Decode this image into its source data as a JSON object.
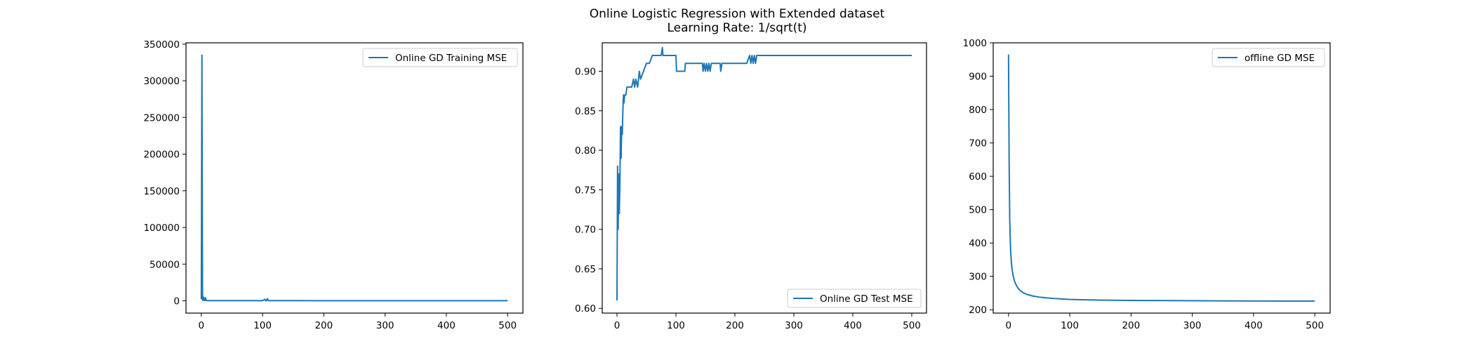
{
  "figure": {
    "title_line1": "Online Logistic Regression with Extended dataset",
    "title_line2": "Learning Rate: 1/sqrt(t)"
  },
  "colors": {
    "line": "#1f77b4",
    "axes": "#000000",
    "background": "#ffffff"
  },
  "chart_data": [
    {
      "type": "line",
      "title": "",
      "xlabel": "",
      "ylabel": "",
      "xlim": [
        -25,
        525
      ],
      "ylim": [
        -16750,
        351750
      ],
      "xticks": [
        0,
        100,
        200,
        300,
        400,
        500
      ],
      "yticks": [
        0,
        50000,
        100000,
        150000,
        200000,
        250000,
        300000,
        350000
      ],
      "legend_position": "upper right",
      "grid": false,
      "series": [
        {
          "name": "Online GD Training MSE",
          "x": [
            0,
            1,
            2,
            3,
            4,
            5,
            6,
            7,
            8,
            9,
            10,
            20,
            50,
            100,
            104,
            105,
            106,
            108,
            109,
            110,
            150,
            200,
            300,
            400,
            500
          ],
          "y": [
            2000,
            335000,
            1500,
            500,
            5000,
            800,
            300,
            4000,
            600,
            400,
            300,
            250,
            200,
            200,
            2000,
            200,
            200,
            3000,
            200,
            200,
            180,
            170,
            160,
            160,
            150
          ]
        }
      ]
    },
    {
      "type": "line",
      "title": "",
      "xlabel": "",
      "ylabel": "",
      "xlim": [
        -25,
        525
      ],
      "ylim": [
        0.594,
        0.936
      ],
      "xticks": [
        0,
        100,
        200,
        300,
        400,
        500
      ],
      "yticks": [
        0.6,
        0.65,
        0.7,
        0.75,
        0.8,
        0.85,
        0.9
      ],
      "legend_position": "lower right",
      "grid": false,
      "series": [
        {
          "name": "Online GD Test MSE",
          "x": [
            0,
            1,
            2,
            3,
            4,
            5,
            6,
            7,
            8,
            9,
            10,
            11,
            12,
            13,
            15,
            17,
            20,
            22,
            25,
            28,
            30,
            32,
            35,
            38,
            40,
            45,
            50,
            55,
            60,
            70,
            75,
            77,
            78,
            80,
            90,
            100,
            101,
            115,
            116,
            140,
            145,
            146,
            148,
            150,
            152,
            154,
            156,
            158,
            160,
            170,
            175,
            176,
            178,
            180,
            190,
            200,
            220,
            225,
            227,
            229,
            231,
            233,
            235,
            237,
            240,
            245,
            250,
            300,
            400,
            500
          ],
          "y": [
            0.61,
            0.78,
            0.7,
            0.77,
            0.72,
            0.76,
            0.83,
            0.79,
            0.83,
            0.82,
            0.85,
            0.87,
            0.86,
            0.87,
            0.87,
            0.88,
            0.88,
            0.88,
            0.88,
            0.89,
            0.88,
            0.89,
            0.88,
            0.9,
            0.89,
            0.9,
            0.91,
            0.91,
            0.92,
            0.92,
            0.92,
            0.93,
            0.92,
            0.92,
            0.92,
            0.92,
            0.9,
            0.9,
            0.91,
            0.91,
            0.91,
            0.9,
            0.91,
            0.9,
            0.91,
            0.9,
            0.91,
            0.9,
            0.91,
            0.91,
            0.91,
            0.9,
            0.91,
            0.91,
            0.91,
            0.91,
            0.91,
            0.92,
            0.91,
            0.92,
            0.91,
            0.92,
            0.91,
            0.92,
            0.92,
            0.92,
            0.92,
            0.92,
            0.92,
            0.92
          ]
        }
      ]
    },
    {
      "type": "line",
      "title": "",
      "xlabel": "",
      "ylabel": "",
      "xlim": [
        -25,
        525
      ],
      "ylim": [
        190,
        1000
      ],
      "xticks": [
        0,
        100,
        200,
        300,
        400,
        500
      ],
      "yticks": [
        200,
        300,
        400,
        500,
        600,
        700,
        800,
        900,
        1000
      ],
      "legend_position": "upper right",
      "grid": false,
      "series": [
        {
          "name": "offline GD MSE",
          "x": [
            0,
            1,
            2,
            3,
            4,
            5,
            6,
            8,
            10,
            12,
            15,
            20,
            25,
            30,
            40,
            50,
            60,
            80,
            100,
            120,
            150,
            200,
            250,
            300,
            350,
            400,
            450,
            500
          ],
          "y": [
            965,
            650,
            470,
            400,
            360,
            335,
            318,
            298,
            285,
            276,
            266,
            256,
            250,
            246,
            241,
            238,
            236,
            233,
            231,
            230,
            229,
            228,
            227.5,
            227,
            226.5,
            226.3,
            226.1,
            226
          ]
        }
      ]
    }
  ]
}
